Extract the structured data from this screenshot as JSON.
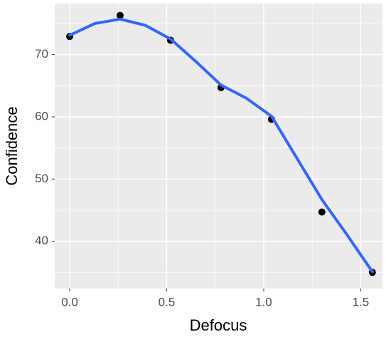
{
  "chart_data": {
    "type": "scatter",
    "x_label": "Defocus",
    "y_label": "Confidence",
    "x": [
      0,
      0.26,
      0.52,
      0.78,
      1.04,
      1.3,
      1.56
    ],
    "values": [
      72.9,
      76.3,
      72.3,
      64.7,
      59.6,
      44.7,
      35.0
    ],
    "color": "#000000",
    "smooth": {
      "x": [
        0,
        0.13,
        0.26,
        0.39,
        0.52,
        0.65,
        0.78,
        0.91,
        1.04,
        1.17,
        1.3,
        1.43,
        1.56
      ],
      "values": [
        73.1,
        75.0,
        75.7,
        74.7,
        72.5,
        68.9,
        65.1,
        63.0,
        60.1,
        53.4,
        46.7,
        41.0,
        35.1
      ],
      "color": "#3366ff"
    },
    "xlim": [
      -0.077,
      1.612
    ],
    "ylim": [
      32.4,
      78.2
    ],
    "xticks": [
      {
        "value": 0,
        "label": "0.0"
      },
      0.5,
      {
        "value": 1,
        "label": "1.0"
      },
      1.5
    ],
    "yticks": [
      40,
      50,
      60,
      70
    ],
    "x_minor_breaks": [
      0.25,
      0.75,
      1.25
    ],
    "y_minor_breaks": [
      35,
      45,
      55,
      65,
      75
    ],
    "grid": true
  }
}
